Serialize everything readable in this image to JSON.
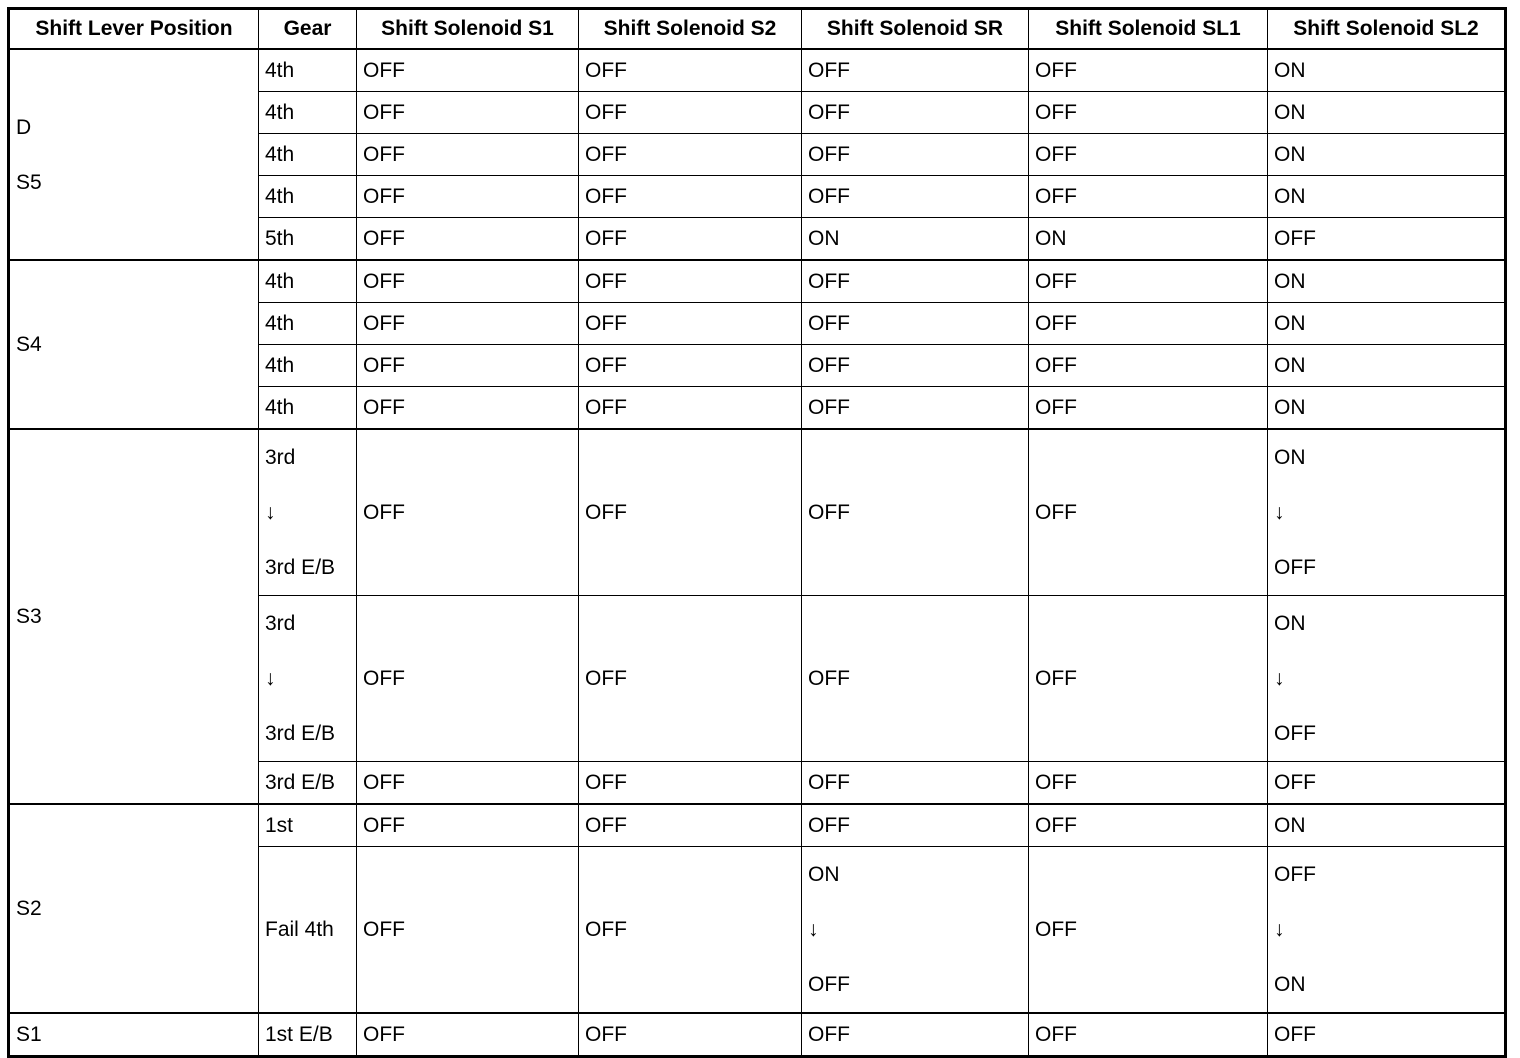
{
  "table": {
    "headers": [
      "Shift Lever Position",
      "Gear",
      "Shift Solenoid S1",
      "Shift Solenoid S2",
      "Shift Solenoid SR",
      "Shift Solenoid SL1",
      "Shift Solenoid SL2"
    ],
    "groups": [
      {
        "lever": [
          "D",
          "S5"
        ],
        "rows": [
          {
            "gear": [
              "4th"
            ],
            "s1": [
              "OFF"
            ],
            "s2": [
              "OFF"
            ],
            "sr": [
              "OFF"
            ],
            "sl1": [
              "OFF"
            ],
            "sl2": [
              "ON"
            ]
          },
          {
            "gear": [
              "4th"
            ],
            "s1": [
              "OFF"
            ],
            "s2": [
              "OFF"
            ],
            "sr": [
              "OFF"
            ],
            "sl1": [
              "OFF"
            ],
            "sl2": [
              "ON"
            ]
          },
          {
            "gear": [
              "4th"
            ],
            "s1": [
              "OFF"
            ],
            "s2": [
              "OFF"
            ],
            "sr": [
              "OFF"
            ],
            "sl1": [
              "OFF"
            ],
            "sl2": [
              "ON"
            ]
          },
          {
            "gear": [
              "4th"
            ],
            "s1": [
              "OFF"
            ],
            "s2": [
              "OFF"
            ],
            "sr": [
              "OFF"
            ],
            "sl1": [
              "OFF"
            ],
            "sl2": [
              "ON"
            ]
          },
          {
            "gear": [
              "5th"
            ],
            "s1": [
              "OFF"
            ],
            "s2": [
              "OFF"
            ],
            "sr": [
              "ON"
            ],
            "sl1": [
              "ON"
            ],
            "sl2": [
              "OFF"
            ]
          }
        ]
      },
      {
        "lever": [
          "S4"
        ],
        "rows": [
          {
            "gear": [
              "4th"
            ],
            "s1": [
              "OFF"
            ],
            "s2": [
              "OFF"
            ],
            "sr": [
              "OFF"
            ],
            "sl1": [
              "OFF"
            ],
            "sl2": [
              "ON"
            ]
          },
          {
            "gear": [
              "4th"
            ],
            "s1": [
              "OFF"
            ],
            "s2": [
              "OFF"
            ],
            "sr": [
              "OFF"
            ],
            "sl1": [
              "OFF"
            ],
            "sl2": [
              "ON"
            ]
          },
          {
            "gear": [
              "4th"
            ],
            "s1": [
              "OFF"
            ],
            "s2": [
              "OFF"
            ],
            "sr": [
              "OFF"
            ],
            "sl1": [
              "OFF"
            ],
            "sl2": [
              "ON"
            ]
          },
          {
            "gear": [
              "4th"
            ],
            "s1": [
              "OFF"
            ],
            "s2": [
              "OFF"
            ],
            "sr": [
              "OFF"
            ],
            "sl1": [
              "OFF"
            ],
            "sl2": [
              "ON"
            ]
          }
        ]
      },
      {
        "lever": [
          "S3"
        ],
        "rows": [
          {
            "gear": [
              "3rd",
              "↓",
              "3rd E/B"
            ],
            "s1": [
              "OFF"
            ],
            "s2": [
              "OFF"
            ],
            "sr": [
              "OFF"
            ],
            "sl1": [
              "OFF"
            ],
            "sl2": [
              "ON",
              "↓",
              "OFF"
            ]
          },
          {
            "gear": [
              "3rd",
              "↓",
              "3rd E/B"
            ],
            "s1": [
              "OFF"
            ],
            "s2": [
              "OFF"
            ],
            "sr": [
              "OFF"
            ],
            "sl1": [
              "OFF"
            ],
            "sl2": [
              "ON",
              "↓",
              "OFF"
            ]
          },
          {
            "gear": [
              "3rd E/B"
            ],
            "s1": [
              "OFF"
            ],
            "s2": [
              "OFF"
            ],
            "sr": [
              "OFF"
            ],
            "sl1": [
              "OFF"
            ],
            "sl2": [
              "OFF"
            ]
          }
        ]
      },
      {
        "lever": [
          "S2"
        ],
        "rows": [
          {
            "gear": [
              "1st"
            ],
            "s1": [
              "OFF"
            ],
            "s2": [
              "OFF"
            ],
            "sr": [
              "OFF"
            ],
            "sl1": [
              "OFF"
            ],
            "sl2": [
              "ON"
            ]
          },
          {
            "gear": [
              "Fail 4th"
            ],
            "s1": [
              "OFF"
            ],
            "s2": [
              "OFF"
            ],
            "sr": [
              "ON",
              "↓",
              "OFF"
            ],
            "sl1": [
              "OFF"
            ],
            "sl2": [
              "OFF",
              "↓",
              "ON"
            ]
          }
        ]
      },
      {
        "lever": [
          "S1"
        ],
        "rows": [
          {
            "gear": [
              "1st E/B"
            ],
            "s1": [
              "OFF"
            ],
            "s2": [
              "OFF"
            ],
            "sr": [
              "OFF"
            ],
            "sl1": [
              "OFF"
            ],
            "sl2": [
              "OFF"
            ]
          }
        ]
      }
    ]
  }
}
